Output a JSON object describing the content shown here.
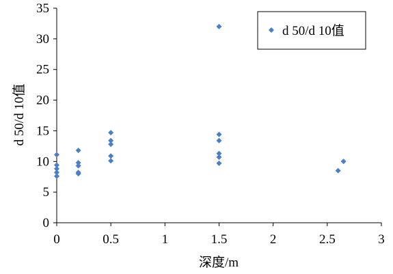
{
  "chart_data": {
    "type": "scatter",
    "title": "",
    "xlabel": "深度/m",
    "ylabel": "d 50/d 10值",
    "xlim": [
      0,
      3
    ],
    "ylim": [
      0,
      35
    ],
    "x_ticks": [
      "0",
      "0.5",
      "1",
      "1.5",
      "2",
      "2.5",
      "3"
    ],
    "y_ticks": [
      "0",
      "5",
      "10",
      "15",
      "20",
      "25",
      "30",
      "35"
    ],
    "grid": false,
    "legend_position": "top-right",
    "series": [
      {
        "name": "d 50/d 10值",
        "color": "#4A7EC8",
        "marker": "diamond",
        "points": [
          {
            "x": 0,
            "y": 11.1
          },
          {
            "x": 0,
            "y": 9.4
          },
          {
            "x": 0,
            "y": 8.8
          },
          {
            "x": 0,
            "y": 8.2
          },
          {
            "x": 0,
            "y": 7.6
          },
          {
            "x": 0.2,
            "y": 11.8
          },
          {
            "x": 0.2,
            "y": 9.8
          },
          {
            "x": 0.2,
            "y": 9.3
          },
          {
            "x": 0.2,
            "y": 8.2
          },
          {
            "x": 0.2,
            "y": 8.0
          },
          {
            "x": 0.5,
            "y": 14.7
          },
          {
            "x": 0.5,
            "y": 13.4
          },
          {
            "x": 0.5,
            "y": 12.8
          },
          {
            "x": 0.5,
            "y": 10.9
          },
          {
            "x": 0.5,
            "y": 10.1
          },
          {
            "x": 1.5,
            "y": 32.0
          },
          {
            "x": 1.5,
            "y": 14.4
          },
          {
            "x": 1.5,
            "y": 13.4
          },
          {
            "x": 1.5,
            "y": 11.3
          },
          {
            "x": 1.5,
            "y": 10.7
          },
          {
            "x": 1.5,
            "y": 9.7
          },
          {
            "x": 2.6,
            "y": 8.5
          },
          {
            "x": 2.65,
            "y": 10.0
          }
        ]
      }
    ]
  }
}
